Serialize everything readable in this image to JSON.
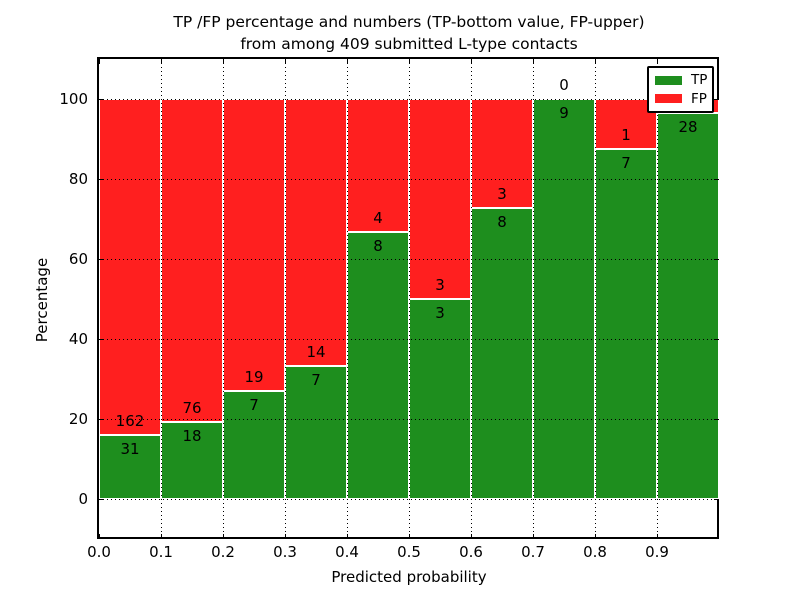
{
  "title": {
    "line1": "TP /FP percentage and numbers (TP-bottom value, FP-upper)",
    "line2": "from among 409 submitted L-type contacts"
  },
  "axes": {
    "xlabel": "Predicted probability",
    "ylabel": "Percentage",
    "x_tick_labels": [
      "0.0",
      "0.1",
      "0.2",
      "0.3",
      "0.4",
      "0.5",
      "0.6",
      "0.7",
      "0.8",
      "0.9"
    ],
    "y_tick_labels": [
      "0",
      "20",
      "40",
      "60",
      "80",
      "100"
    ]
  },
  "legend": {
    "entries": [
      {
        "label": "TP",
        "color": "#1E8E1E"
      },
      {
        "label": "FP",
        "color": "#FF1F1F"
      }
    ]
  },
  "colors": {
    "tp": "#1E8E1E",
    "fp": "#FF1F1F",
    "grid": "#000000",
    "background": "#FFFFFF"
  },
  "chart_data": {
    "type": "bar",
    "subtype": "stacked-percentage",
    "title": "TP /FP percentage and numbers (TP-bottom value, FP-upper) from among 409 submitted L-type contacts",
    "xlabel": "Predicted probability",
    "ylabel": "Percentage",
    "xlim": [
      0.0,
      1.0
    ],
    "ylim": [
      -10,
      110
    ],
    "y_ticks": [
      0,
      20,
      40,
      60,
      80,
      100
    ],
    "x_ticks": [
      0.0,
      0.1,
      0.2,
      0.3,
      0.4,
      0.5,
      0.6,
      0.7,
      0.8,
      0.9
    ],
    "grid": "dotted",
    "legend_position": "upper right",
    "total_contacts": 409,
    "series": [
      {
        "name": "TP",
        "color": "#1E8E1E",
        "values": [
          31,
          18,
          7,
          7,
          8,
          3,
          8,
          9,
          7,
          28
        ]
      },
      {
        "name": "FP",
        "color": "#FF1F1F",
        "values": [
          162,
          76,
          19,
          14,
          4,
          3,
          3,
          0,
          1,
          1
        ]
      }
    ],
    "bins": [
      {
        "range": [
          0.0,
          0.1
        ],
        "tp": 31,
        "fp": 162
      },
      {
        "range": [
          0.1,
          0.2
        ],
        "tp": 18,
        "fp": 76
      },
      {
        "range": [
          0.2,
          0.3
        ],
        "tp": 7,
        "fp": 19
      },
      {
        "range": [
          0.3,
          0.4
        ],
        "tp": 7,
        "fp": 14
      },
      {
        "range": [
          0.4,
          0.5
        ],
        "tp": 8,
        "fp": 4
      },
      {
        "range": [
          0.5,
          0.6
        ],
        "tp": 3,
        "fp": 3
      },
      {
        "range": [
          0.6,
          0.7
        ],
        "tp": 8,
        "fp": 3
      },
      {
        "range": [
          0.7,
          0.8
        ],
        "tp": 9,
        "fp": 0
      },
      {
        "range": [
          0.8,
          0.9
        ],
        "tp": 7,
        "fp": 1
      },
      {
        "range": [
          0.9,
          1.0
        ],
        "tp": 28,
        "fp": 1,
        "fp_label_hidden_by_legend": true
      }
    ]
  }
}
